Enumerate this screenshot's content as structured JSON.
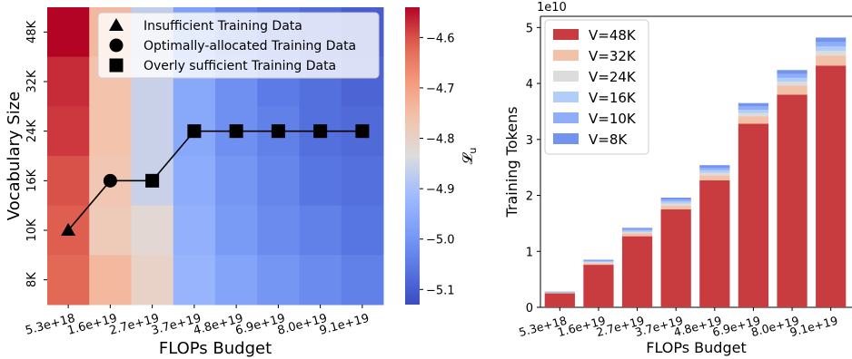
{
  "chart_data": [
    {
      "type": "heatmap",
      "xlabel": "FLOPs Budget",
      "ylabel": "Vocabulary Size",
      "x_categories": [
        "5.3e+18",
        "1.6e+19",
        "2.7e+19",
        "3.7e+19",
        "4.8e+19",
        "6.9e+19",
        "8.0e+19",
        "9.1e+19"
      ],
      "y_categories": [
        "48K",
        "32K",
        "24K",
        "16K",
        "10K",
        "8K"
      ],
      "values": [
        [
          -4.54,
          -4.74,
          -4.87,
          -4.98,
          -5.03,
          -5.06,
          -5.08,
          -5.1
        ],
        [
          -4.57,
          -4.76,
          -4.86,
          -4.96,
          -5.01,
          -5.05,
          -5.07,
          -5.09
        ],
        [
          -4.58,
          -4.76,
          -4.86,
          -4.96,
          -5.01,
          -5.04,
          -5.07,
          -5.08
        ],
        [
          -4.6,
          -4.77,
          -4.86,
          -4.95,
          -5.0,
          -5.03,
          -5.06,
          -5.07
        ],
        [
          -4.61,
          -4.78,
          -4.82,
          -4.94,
          -4.99,
          -5.02,
          -5.04,
          -5.06
        ],
        [
          -4.62,
          -4.74,
          -4.8,
          -4.93,
          -4.97,
          -5.0,
          -5.02,
          -5.04
        ]
      ],
      "colorbar": {
        "label": "𝓛",
        "label_sub": "u",
        "min": -5.13,
        "max": -4.54,
        "ticks": [
          -4.6,
          -4.7,
          -4.8,
          -4.9,
          -5.0,
          -5.1
        ],
        "tick_labels": [
          "−4.6",
          "−4.7",
          "−4.8",
          "−4.9",
          "−5.0",
          "−5.1"
        ],
        "colormap": "coolwarm"
      },
      "line_series": {
        "color": "#000000",
        "points": [
          {
            "x": "5.3e+18",
            "y": "10K",
            "marker": "triangle"
          },
          {
            "x": "1.6e+19",
            "y": "16K",
            "marker": "circle"
          },
          {
            "x": "2.7e+19",
            "y": "16K",
            "marker": "square"
          },
          {
            "x": "3.7e+19",
            "y": "24K",
            "marker": "square"
          },
          {
            "x": "4.8e+19",
            "y": "24K",
            "marker": "square"
          },
          {
            "x": "6.9e+19",
            "y": "24K",
            "marker": "square"
          },
          {
            "x": "8.0e+19",
            "y": "24K",
            "marker": "square"
          },
          {
            "x": "9.1e+19",
            "y": "24K",
            "marker": "square"
          }
        ]
      },
      "legend": {
        "placement": "top-right",
        "entries": [
          {
            "label": "Insufficient Training Data",
            "marker": "triangle"
          },
          {
            "label": "Optimally-allocated Training Data",
            "marker": "circle"
          },
          {
            "label": "Overly sufficient Training Data",
            "marker": "square"
          }
        ]
      }
    },
    {
      "type": "bar",
      "stacked": true,
      "xlabel": "FLOPs Budget",
      "ylabel": "Training Tokens",
      "offset_label": "1e10",
      "categories": [
        "5.3e+18",
        "1.6e+19",
        "2.7e+19",
        "3.7e+19",
        "4.8e+19",
        "6.9e+19",
        "8.0e+19",
        "9.1e+19"
      ],
      "ylim": [
        0,
        5.2
      ],
      "yticks": [
        0,
        1,
        2,
        3,
        4,
        5
      ],
      "series": [
        {
          "name": "V=48K",
          "color": "#c83c40",
          "values": [
            0.25,
            0.76,
            1.27,
            1.75,
            2.27,
            3.28,
            3.8,
            4.32
          ]
        },
        {
          "name": "V=32K",
          "color": "#f3c1a7",
          "values": [
            0.01,
            0.03,
            0.05,
            0.07,
            0.09,
            0.13,
            0.16,
            0.18
          ]
        },
        {
          "name": "V=24K",
          "color": "#dcdcdc",
          "values": [
            0.005,
            0.015,
            0.025,
            0.035,
            0.045,
            0.06,
            0.07,
            0.08
          ]
        },
        {
          "name": "V=16K",
          "color": "#b3cdfb",
          "values": [
            0.005,
            0.015,
            0.025,
            0.035,
            0.045,
            0.06,
            0.07,
            0.08
          ]
        },
        {
          "name": "V=10K",
          "color": "#8eaef9",
          "values": [
            0.005,
            0.015,
            0.025,
            0.035,
            0.045,
            0.06,
            0.07,
            0.08
          ]
        },
        {
          "name": "V=8K",
          "color": "#7394ee",
          "values": [
            0.005,
            0.015,
            0.025,
            0.035,
            0.045,
            0.06,
            0.07,
            0.08
          ]
        }
      ],
      "legend": {
        "placement": "top-left"
      }
    }
  ]
}
